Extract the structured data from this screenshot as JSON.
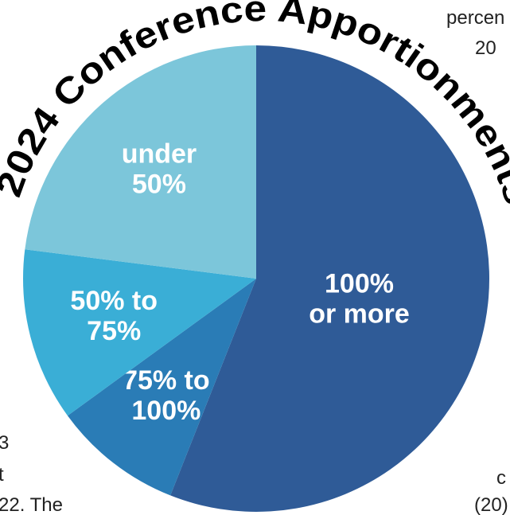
{
  "chart_data": {
    "type": "pie",
    "title": "2024 Conference Apportionments",
    "categories": [
      [
        "100%",
        "or more"
      ],
      [
        "75% to",
        "100%"
      ],
      [
        "50% to",
        "75%"
      ],
      [
        "under",
        "50%"
      ]
    ],
    "values": [
      56,
      9,
      12,
      23
    ],
    "colors": [
      "#2f5b97",
      "#2a7cb6",
      "#3aaed6",
      "#7cc6da"
    ]
  },
  "background_text": [
    "percen",
    "20",
    "3",
    "t",
    "22. The",
    "c",
    "(20)"
  ]
}
